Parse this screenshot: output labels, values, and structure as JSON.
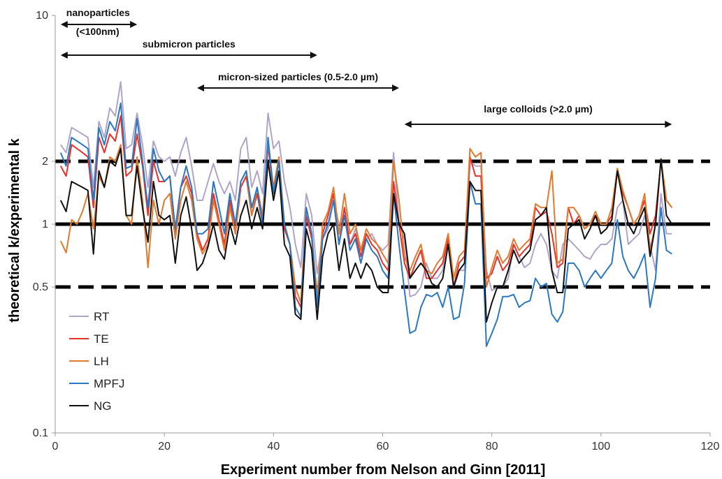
{
  "chart_data": {
    "type": "line",
    "title": "",
    "xlabel": "Experiment number from Nelson and Ginn [2011]",
    "ylabel": "theoretical k/experimental k",
    "xlim": [
      0,
      120
    ],
    "ylim": [
      0.1,
      10
    ],
    "y_scale": "log",
    "grid": false,
    "legend_position": "bottom-left",
    "x_ticks": [
      0,
      20,
      40,
      60,
      80,
      100,
      120
    ],
    "x_tick_labels": [
      "0",
      "20",
      "40",
      "60",
      "80",
      "100",
      "120"
    ],
    "y_ticks": [
      0.1,
      0.5,
      1,
      2,
      10
    ],
    "y_tick_labels": [
      "0.1",
      "0.5",
      "1",
      "2",
      "10"
    ],
    "reference_lines": [
      {
        "y": 2,
        "style": "dashed"
      },
      {
        "y": 1,
        "style": "solid"
      },
      {
        "y": 0.5,
        "style": "dashed"
      }
    ],
    "annotations": [
      {
        "lines": [
          "nanoparticles",
          "(<100nm)"
        ],
        "x_start": 1,
        "x_end": 15
      },
      {
        "lines": [
          "submicron particles"
        ],
        "x_start": 1,
        "x_end": 48
      },
      {
        "lines": [
          "micron-sized particles (0.5-2.0 µm)"
        ],
        "x_start": 26,
        "x_end": 63
      },
      {
        "lines": [
          "large colloids (>2.0 µm)"
        ],
        "x_start": 64,
        "x_end": 113
      }
    ],
    "x": [
      1,
      2,
      3,
      4,
      5,
      6,
      7,
      8,
      9,
      10,
      11,
      12,
      13,
      14,
      15,
      16,
      17,
      18,
      19,
      20,
      21,
      22,
      23,
      24,
      25,
      26,
      27,
      28,
      29,
      30,
      31,
      32,
      33,
      34,
      35,
      36,
      37,
      38,
      39,
      40,
      41,
      42,
      43,
      44,
      45,
      46,
      47,
      48,
      49,
      50,
      51,
      52,
      53,
      54,
      55,
      56,
      57,
      58,
      59,
      60,
      61,
      62,
      63,
      64,
      65,
      66,
      67,
      68,
      69,
      70,
      71,
      72,
      73,
      74,
      75,
      76,
      77,
      78,
      79,
      80,
      81,
      82,
      83,
      84,
      85,
      86,
      87,
      88,
      89,
      90,
      91,
      92,
      93,
      94,
      95,
      96,
      97,
      98,
      99,
      100,
      101,
      102,
      103,
      104,
      105,
      106,
      107,
      108,
      109,
      110,
      111,
      112,
      113
    ],
    "series": [
      {
        "name": "RT",
        "color": "#b0a4c8",
        "values": [
          2.4,
          2.2,
          2.9,
          2.8,
          2.7,
          2.6,
          1.5,
          3.1,
          2.6,
          3.6,
          3.3,
          4.8,
          2.3,
          2.4,
          3.4,
          2.4,
          1.5,
          2.5,
          2.1,
          2.0,
          2.1,
          1.7,
          2.2,
          2.6,
          1.9,
          1.3,
          1.3,
          1.6,
          1.95,
          1.6,
          1.4,
          1.6,
          1.3,
          2.3,
          2.6,
          1.5,
          1.8,
          1.4,
          3.4,
          2.3,
          2.5,
          1.6,
          1.2,
          0.8,
          0.62,
          1.4,
          1.1,
          0.58,
          0.85,
          0.95,
          1.3,
          1.0,
          1.1,
          0.8,
          0.95,
          0.75,
          0.85,
          0.9,
          0.8,
          0.75,
          0.8,
          2.2,
          1.0,
          0.85,
          0.45,
          0.46,
          0.5,
          0.65,
          0.55,
          0.55,
          0.6,
          0.9,
          0.5,
          0.6,
          0.6,
          2.0,
          1.9,
          1.9,
          0.6,
          0.48,
          0.5,
          0.5,
          0.55,
          0.8,
          0.7,
          0.62,
          0.65,
          0.8,
          0.9,
          0.8,
          0.6,
          0.55,
          0.8,
          0.85,
          0.8,
          0.75,
          0.7,
          0.68,
          0.75,
          0.8,
          0.8,
          0.85,
          1.2,
          1.3,
          0.8,
          0.85,
          0.9,
          1.1,
          0.8,
          0.6,
          1.4,
          0.9,
          0.9
        ]
      },
      {
        "name": "TE",
        "color": "#e8302a",
        "values": [
          1.9,
          1.7,
          2.4,
          2.3,
          2.2,
          2.1,
          1.2,
          2.6,
          2.2,
          2.7,
          2.5,
          3.3,
          1.7,
          1.8,
          2.7,
          1.9,
          1.1,
          2.0,
          1.6,
          1.6,
          1.7,
          0.9,
          1.5,
          1.7,
          1.4,
          0.9,
          0.75,
          0.85,
          1.4,
          1.05,
          0.8,
          1.3,
          0.9,
          1.5,
          1.7,
          1.1,
          1.4,
          1.0,
          2.4,
          1.4,
          2.0,
          0.95,
          0.8,
          0.45,
          0.4,
          1.1,
          0.85,
          0.42,
          0.9,
          1.1,
          1.4,
          0.8,
          1.2,
          0.8,
          0.9,
          0.7,
          0.9,
          0.8,
          0.75,
          0.65,
          0.6,
          1.6,
          1.0,
          0.65,
          0.55,
          0.65,
          0.75,
          0.55,
          0.55,
          0.6,
          0.65,
          0.85,
          0.5,
          0.65,
          0.7,
          2.1,
          1.7,
          1.7,
          0.55,
          0.58,
          0.7,
          0.6,
          0.65,
          0.8,
          0.7,
          0.75,
          0.8,
          1.2,
          1.1,
          1.15,
          0.9,
          0.62,
          0.65,
          1.2,
          1.0,
          1.1,
          0.95,
          1.0,
          1.1,
          1.0,
          1.0,
          1.1,
          1.8,
          1.4,
          1.2,
          1.0,
          1.1,
          1.3,
          0.9,
          1.1,
          2.0,
          1.3,
          1.2
        ]
      },
      {
        "name": "LH",
        "color": "#e07a2e",
        "values": [
          0.83,
          0.73,
          1.05,
          1.0,
          1.15,
          1.4,
          0.95,
          1.7,
          1.5,
          2.1,
          2.0,
          2.4,
          1.1,
          1.0,
          2.1,
          1.3,
          0.62,
          1.3,
          1.0,
          1.3,
          1.4,
          0.85,
          1.3,
          1.6,
          1.3,
          0.85,
          0.72,
          0.8,
          1.3,
          1.0,
          0.75,
          1.2,
          0.9,
          1.6,
          1.8,
          1.1,
          1.5,
          1.1,
          2.5,
          1.5,
          2.1,
          1.0,
          0.8,
          0.5,
          0.42,
          1.2,
          0.9,
          0.45,
          1.0,
          1.15,
          1.5,
          0.9,
          1.4,
          0.9,
          1.0,
          0.75,
          0.95,
          0.85,
          0.8,
          0.72,
          0.65,
          2.0,
          1.3,
          0.7,
          0.6,
          0.7,
          0.8,
          0.6,
          0.58,
          0.65,
          0.7,
          0.9,
          0.55,
          0.7,
          0.75,
          2.3,
          2.1,
          2.2,
          0.5,
          0.62,
          0.75,
          0.65,
          0.7,
          0.85,
          0.75,
          0.8,
          0.85,
          1.25,
          1.2,
          1.2,
          1.8,
          0.65,
          0.68,
          1.2,
          1.2,
          1.1,
          0.95,
          1.0,
          1.15,
          1.0,
          1.0,
          1.2,
          1.85,
          1.45,
          1.2,
          1.0,
          1.1,
          1.4,
          0.75,
          1.0,
          2.05,
          1.3,
          1.2
        ]
      },
      {
        "name": "MPFJ",
        "color": "#2a78c2",
        "values": [
          2.2,
          1.9,
          2.6,
          2.5,
          2.4,
          2.3,
          1.3,
          2.9,
          2.4,
          3.1,
          2.8,
          3.8,
          1.85,
          1.9,
          3.2,
          2.0,
          1.2,
          2.3,
          1.8,
          1.6,
          1.7,
          0.95,
          1.5,
          1.9,
          1.5,
          0.9,
          0.9,
          0.95,
          1.6,
          1.2,
          0.9,
          1.4,
          1.0,
          1.6,
          1.8,
          1.2,
          1.5,
          1.0,
          2.6,
          1.4,
          2.0,
          1.0,
          0.8,
          0.4,
          0.36,
          1.2,
          0.9,
          0.4,
          0.85,
          1.0,
          1.3,
          0.8,
          1.1,
          0.75,
          0.85,
          0.65,
          0.85,
          0.75,
          0.7,
          0.6,
          0.55,
          1.4,
          0.8,
          0.48,
          0.3,
          0.31,
          0.4,
          0.46,
          0.45,
          0.47,
          0.4,
          0.5,
          0.35,
          0.36,
          0.52,
          1.6,
          1.25,
          1.25,
          0.26,
          0.3,
          0.35,
          0.45,
          0.45,
          0.46,
          0.4,
          0.42,
          0.43,
          0.55,
          0.5,
          0.52,
          0.37,
          0.34,
          0.38,
          0.65,
          0.65,
          0.6,
          0.5,
          0.55,
          0.6,
          0.55,
          0.6,
          0.65,
          1.05,
          0.7,
          0.6,
          0.55,
          0.62,
          0.72,
          0.4,
          0.55,
          1.2,
          0.75,
          0.72
        ]
      },
      {
        "name": "NG",
        "color": "#111111",
        "values": [
          1.3,
          1.15,
          1.6,
          1.55,
          1.5,
          1.45,
          0.72,
          1.8,
          1.5,
          2.0,
          1.9,
          2.3,
          1.1,
          1.1,
          1.9,
          1.2,
          0.82,
          1.6,
          1.1,
          1.05,
          1.1,
          0.65,
          1.1,
          1.35,
          0.95,
          0.6,
          0.65,
          0.78,
          1.0,
          0.75,
          0.68,
          1.0,
          0.8,
          1.1,
          1.3,
          0.95,
          1.2,
          0.95,
          2.0,
          1.3,
          1.8,
          0.8,
          0.7,
          0.37,
          0.35,
          0.95,
          0.75,
          0.35,
          0.7,
          0.9,
          1.0,
          0.6,
          0.85,
          0.55,
          0.65,
          0.55,
          0.65,
          0.6,
          0.5,
          0.47,
          0.47,
          1.4,
          1.0,
          0.9,
          0.55,
          0.6,
          0.65,
          0.6,
          0.52,
          0.5,
          0.55,
          0.8,
          0.5,
          0.6,
          0.65,
          1.6,
          1.45,
          1.45,
          0.34,
          0.42,
          0.5,
          0.5,
          0.6,
          0.75,
          0.65,
          0.7,
          0.75,
          1.05,
          1.1,
          1.2,
          0.6,
          0.47,
          0.47,
          0.95,
          1.0,
          1.05,
          0.85,
          0.95,
          1.1,
          0.9,
          0.95,
          1.05,
          1.8,
          1.3,
          1.0,
          0.9,
          1.05,
          1.2,
          0.7,
          1.0,
          2.05,
          1.1,
          1.0
        ]
      }
    ]
  }
}
